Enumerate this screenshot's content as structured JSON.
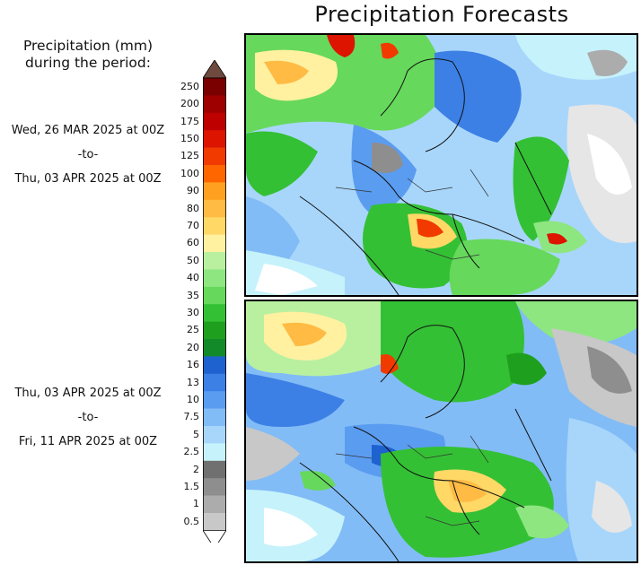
{
  "title": "Precipitation Forecasts",
  "legend": {
    "title_line1": "Precipitation (mm)",
    "title_line2": "during the period:",
    "levels": [
      "250",
      "200",
      "175",
      "150",
      "125",
      "100",
      "90",
      "80",
      "70",
      "60",
      "50",
      "40",
      "35",
      "30",
      "25",
      "20",
      "16",
      "13",
      "10",
      "7.5",
      "5",
      "2.5",
      "2",
      "1.5",
      "1",
      "0.5"
    ],
    "colors": [
      "#7a0000",
      "#9e0000",
      "#be0000",
      "#dc1400",
      "#f03a00",
      "#ff6600",
      "#ffa020",
      "#ffbb44",
      "#ffd866",
      "#fff1a0",
      "#b8f0a0",
      "#8ee680",
      "#66d85c",
      "#34c034",
      "#1ea01e",
      "#138a2a",
      "#1e62d0",
      "#3c80e6",
      "#5a9cf0",
      "#82bcf6",
      "#a8d6fb",
      "#c6f2fb",
      "#707070",
      "#8e8e8e",
      "#acacac",
      "#c8c8c8"
    ],
    "top_arrow_color": "#6e4a3e",
    "bottom_arrow_color": "#ffffff"
  },
  "periods": [
    {
      "start": "Wed, 26 MAR 2025 at 00Z",
      "sep": "-to-",
      "end": "Thu, 03 APR 2025 at 00Z"
    },
    {
      "start": "Thu, 03 APR 2025 at 00Z",
      "sep": "-to-",
      "end": "Fri, 11 APR 2025 at 00Z"
    }
  ]
}
